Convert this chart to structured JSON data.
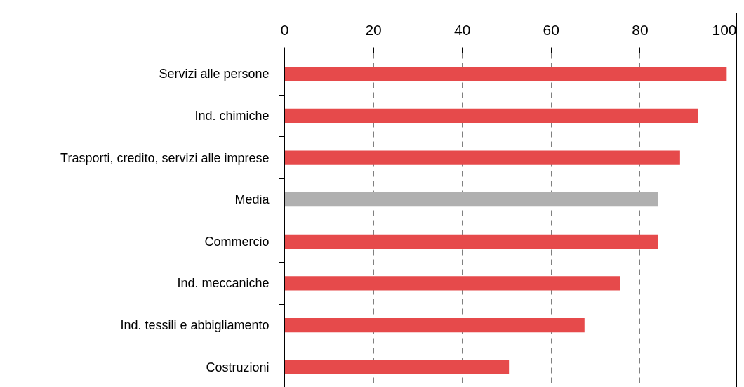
{
  "chart_data": {
    "type": "bar",
    "orientation": "horizontal",
    "categories": [
      "Servizi alle persone",
      "Ind. chimiche",
      "Trasporti, credito, servizi alle imprese",
      "Media",
      "Commercio",
      "Ind. meccaniche",
      "Ind. tessili e abbigliamento",
      "Costruzioni"
    ],
    "values": [
      99.5,
      93,
      89,
      84,
      84,
      75.5,
      67.5,
      50.5
    ],
    "colors": [
      "#e64a4b",
      "#e64a4b",
      "#e64a4b",
      "#b0b0b0",
      "#e64a4b",
      "#e64a4b",
      "#e64a4b",
      "#e64a4b"
    ],
    "xlim": [
      0,
      100
    ],
    "xticks": [
      0,
      20,
      40,
      60,
      80,
      100
    ],
    "grid": "x"
  }
}
